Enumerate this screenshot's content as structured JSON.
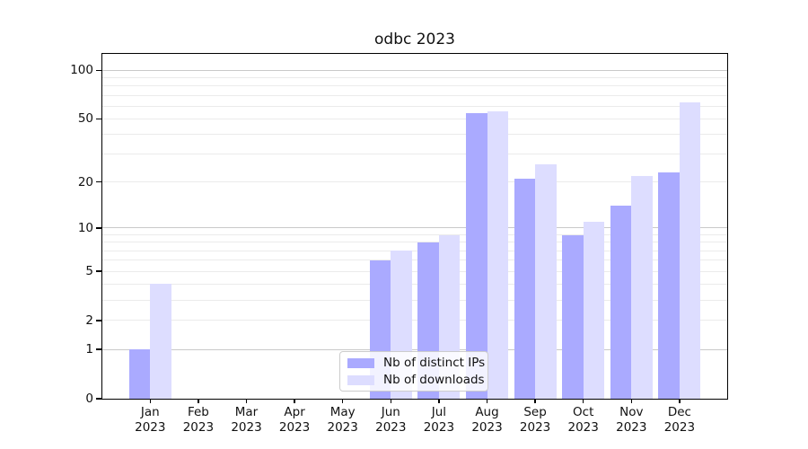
{
  "chart_data": {
    "type": "bar",
    "title": "odbc 2023",
    "categories": [
      "Jan",
      "Feb",
      "Mar",
      "Apr",
      "May",
      "Jun",
      "Jul",
      "Aug",
      "Sep",
      "Oct",
      "Nov",
      "Dec"
    ],
    "year_label": "2023",
    "series": [
      {
        "name": "Nb of distinct IPs",
        "color": "#aaaaff",
        "values": [
          1,
          0,
          0,
          0,
          0,
          6,
          8,
          54,
          21,
          9,
          14,
          23
        ]
      },
      {
        "name": "Nb of downloads",
        "color": "#ddddff",
        "values": [
          4,
          0,
          0,
          0,
          0,
          7,
          9,
          56,
          26,
          11,
          22,
          63
        ]
      }
    ],
    "xlabel": "",
    "ylabel": "",
    "y_scale": "log10(value+1)",
    "ylim": [
      0,
      126
    ],
    "y_major_ticks": [
      0,
      1,
      2,
      5,
      10,
      20,
      50,
      100
    ],
    "y_gridlines_major": [
      1,
      10,
      100
    ],
    "y_gridlines_minor": [
      2,
      3,
      4,
      5,
      6,
      7,
      8,
      9,
      20,
      30,
      40,
      50,
      60,
      70,
      80,
      90
    ],
    "grid": true,
    "legend_position": "inside-bottom-center"
  },
  "colors": {
    "major_gridline": "#c9c9c9",
    "minor_gridline": "#ebebeb",
    "axis": "#000000",
    "bar_dark": "#aaaaff",
    "bar_light": "#ddddff"
  }
}
